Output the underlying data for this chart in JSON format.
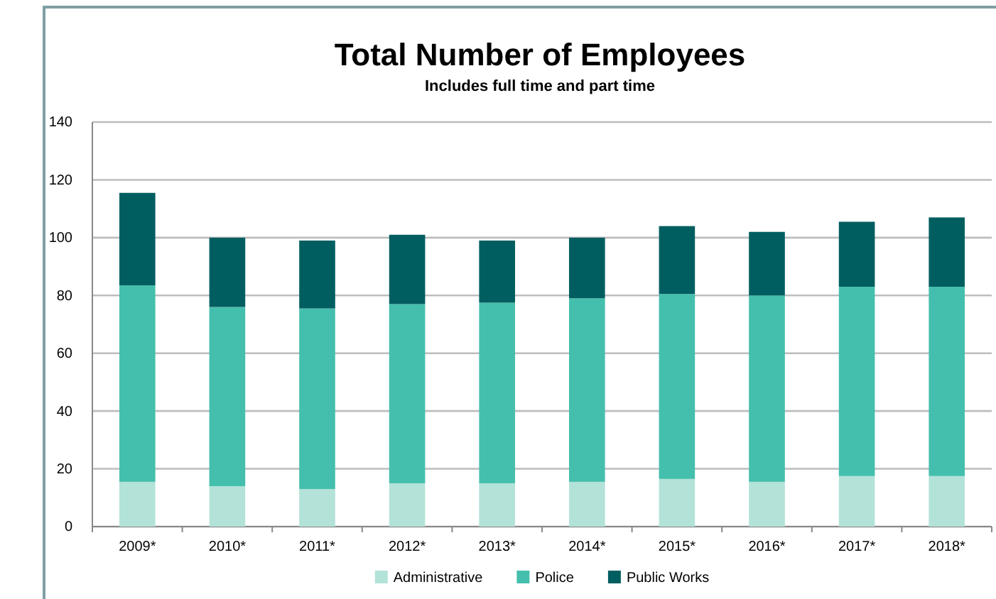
{
  "chart_data": {
    "type": "bar",
    "title": "Total Number of Employees",
    "subtitle": "Includes full time and part time",
    "categories": [
      "2009*",
      "2010*",
      "2011*",
      "2012*",
      "2013*",
      "2014*",
      "2015*",
      "2016*",
      "2017*",
      "2018*"
    ],
    "series": [
      {
        "name": "Administrative",
        "color": "#b3e2d8",
        "values": [
          15.5,
          14,
          13,
          15,
          15,
          15.5,
          16.5,
          15.5,
          17.5,
          17.5
        ]
      },
      {
        "name": "Police",
        "color": "#45bfad",
        "values": [
          68,
          62,
          62.5,
          62,
          62.5,
          63.5,
          64,
          64.5,
          65.5,
          65.5
        ]
      },
      {
        "name": "Public Works",
        "color": "#005e60",
        "values": [
          32,
          24,
          23.5,
          24,
          21.5,
          21,
          23.5,
          22,
          22.5,
          24
        ]
      }
    ],
    "stacked": true,
    "ylim": [
      0,
      140
    ],
    "yticks": [
      0,
      20,
      40,
      60,
      80,
      100,
      120,
      140
    ],
    "grid": "y",
    "legend": "bottom"
  }
}
